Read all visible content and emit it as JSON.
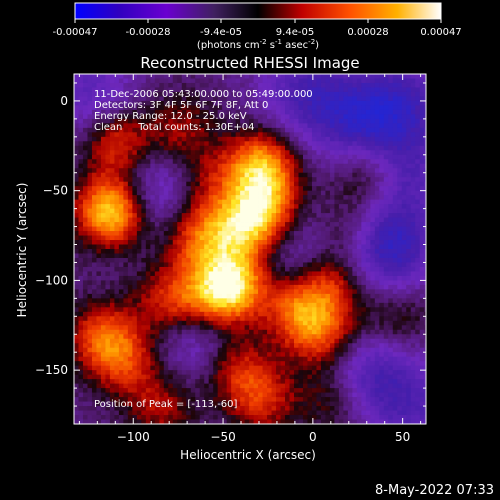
{
  "colorbar": {
    "ticks": [
      "-0.00047",
      "-0.00028",
      "-9.4e-05",
      "9.4e-05",
      "0.00028",
      "0.00047"
    ],
    "units_main": "(photons cm",
    "units_sup1": "-2",
    "units_mid1": " s",
    "units_sup2": "-1",
    "units_mid2": " asec",
    "units_sup3": "-2",
    "units_end": ")",
    "range": [
      -0.00047,
      0.00047
    ]
  },
  "annotation": {
    "time_range": "11-Dec-2006 05:43:00.000 to 05:49:00.000",
    "detectors": "Detectors: 3F 4F 5F 6F 7F 8F, Att 0",
    "energy": "Energy Range: 12.0 - 25.0 keV",
    "clean": "Clean     Total counts: 1.30E+04",
    "peak": "Position of Peak = [-113,-60]"
  },
  "footer": {
    "timestamp": "8-May-2022 07:33"
  },
  "chart_data": {
    "type": "heatmap",
    "title": "Reconstructed RHESSI Image",
    "xlabel": "Heliocentric X (arcsec)",
    "ylabel": "Heliocentric Y (arcsec)",
    "xlim": [
      -133,
      63
    ],
    "ylim": [
      -180,
      15
    ],
    "xticks": [
      -100,
      -50,
      0,
      50
    ],
    "xtick_labels": [
      "−100",
      "−50",
      "0",
      "50"
    ],
    "yticks": [
      0,
      -50,
      -100,
      -150
    ],
    "ytick_labels": [
      "0",
      "−50",
      "−100",
      "−150"
    ],
    "colormap": [
      "#0000ff",
      "#4b0082",
      "#8000ff",
      "#000000",
      "#c00000",
      "#ff4000",
      "#ff9000",
      "#ffe000",
      "#ffffff"
    ],
    "peak_position": [
      -113,
      -60
    ],
    "grid": "off",
    "hotspots": [
      {
        "x": -113,
        "y": -60,
        "value": 1.0
      },
      {
        "x": -110,
        "y": -22,
        "value": 0.55
      },
      {
        "x": -75,
        "y": -15,
        "value": 0.35
      },
      {
        "x": -30,
        "y": -35,
        "value": 0.8
      },
      {
        "x": -27,
        "y": -60,
        "value": 0.65
      },
      {
        "x": -40,
        "y": -70,
        "value": 0.6
      },
      {
        "x": -65,
        "y": -75,
        "value": 0.55
      },
      {
        "x": -45,
        "y": -100,
        "value": 0.75
      },
      {
        "x": -55,
        "y": -110,
        "value": 0.6
      },
      {
        "x": -80,
        "y": -110,
        "value": 0.5
      },
      {
        "x": -10,
        "y": -115,
        "value": 0.55
      },
      {
        "x": 10,
        "y": -100,
        "value": 0.45
      },
      {
        "x": 5,
        "y": -130,
        "value": 0.5
      },
      {
        "x": -118,
        "y": -130,
        "value": 0.55
      },
      {
        "x": -105,
        "y": -145,
        "value": 0.4
      },
      {
        "x": -45,
        "y": -145,
        "value": 0.5
      },
      {
        "x": -30,
        "y": -165,
        "value": 0.45
      },
      {
        "x": 10,
        "y": -165,
        "value": 0.3
      },
      {
        "x": 30,
        "y": -40,
        "value": 0.4
      },
      {
        "x": 45,
        "y": -120,
        "value": 0.3
      },
      {
        "x": -85,
        "y": -170,
        "value": 0.35
      },
      {
        "x": -60,
        "y": -45,
        "value": 0.3
      },
      {
        "x": 20,
        "y": -70,
        "value": 0.3
      }
    ],
    "coldspots": [
      {
        "x": 40,
        "y": -80,
        "value": -0.7
      },
      {
        "x": 25,
        "y": -10,
        "value": -0.5
      },
      {
        "x": -5,
        "y": 5,
        "value": -0.45
      },
      {
        "x": 50,
        "y": 0,
        "value": -0.45
      },
      {
        "x": -60,
        "y": -130,
        "value": -0.45
      },
      {
        "x": 30,
        "y": -150,
        "value": -0.45
      },
      {
        "x": -90,
        "y": -50,
        "value": -0.4
      },
      {
        "x": 55,
        "y": -170,
        "value": -0.35
      },
      {
        "x": -125,
        "y": 5,
        "value": -0.35
      },
      {
        "x": 50,
        "y": -40,
        "value": -0.4
      },
      {
        "x": -15,
        "y": -80,
        "value": -0.3
      }
    ]
  }
}
